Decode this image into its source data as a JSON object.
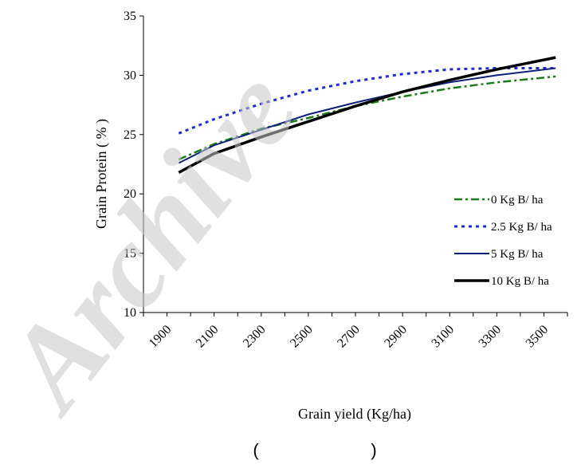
{
  "chart_data": {
    "type": "line",
    "title": "",
    "xlabel": "Grain yield (Kg/ha)",
    "ylabel": "Grain Protein ( % )",
    "xlim": [
      1800,
      3600
    ],
    "ylim": [
      10,
      35
    ],
    "x_ticks": [
      "1900",
      "2100",
      "2300",
      "2500",
      "2700",
      "2900",
      "3100",
      "3300",
      "3500"
    ],
    "y_ticks": [
      "10",
      "15",
      "20",
      "25",
      "30",
      "35"
    ],
    "grid": false,
    "legend_position": "right",
    "x": [
      1950,
      2100,
      2300,
      2500,
      2700,
      2900,
      3100,
      3300,
      3550
    ],
    "series": [
      {
        "name": "0 Kg B/ ha",
        "color": "#1a7a1a",
        "dash": "dash-dot",
        "values": [
          22.9,
          24.2,
          25.5,
          26.4,
          27.4,
          28.2,
          28.9,
          29.4,
          29.9
        ]
      },
      {
        "name": "2.5 Kg B/ ha",
        "color": "#1f2bd0",
        "dash": "dotted",
        "values": [
          25.1,
          26.3,
          27.6,
          28.7,
          29.5,
          30.1,
          30.5,
          30.6,
          30.6
        ]
      },
      {
        "name": "5 Kg B/ ha",
        "color": "#10207a",
        "dash": "solid",
        "values": [
          22.6,
          24.1,
          25.4,
          26.7,
          27.7,
          28.6,
          29.4,
          30.0,
          30.6
        ]
      },
      {
        "name": "10 Kg B/ ha",
        "color": "#000000",
        "dash": "solid-thick",
        "values": [
          21.8,
          23.4,
          24.8,
          26.1,
          27.4,
          28.6,
          29.6,
          30.5,
          31.5
        ]
      }
    ]
  },
  "watermark": "Archive",
  "footer": {
    "open_paren": "(",
    "close_paren": ")"
  }
}
